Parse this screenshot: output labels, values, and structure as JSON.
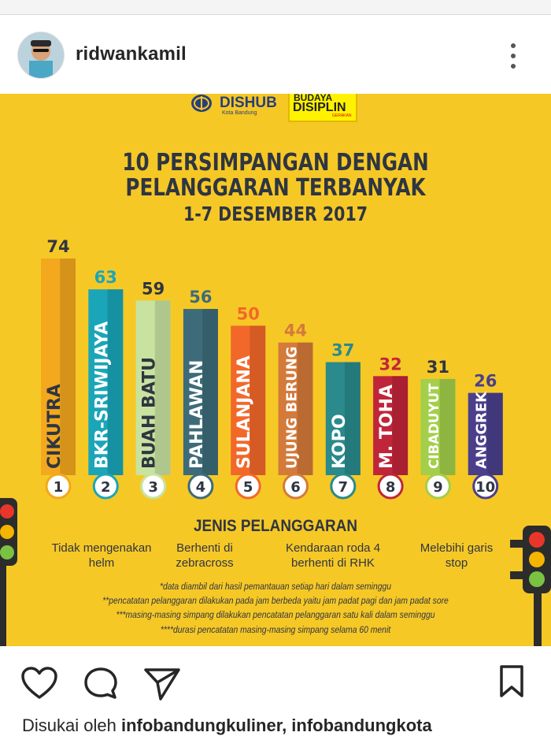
{
  "post": {
    "username": "ridwankamil",
    "liked_by_prefix": "Disukai oleh",
    "liked_by_names": "infobandungkuliner, infobandungkota"
  },
  "poster": {
    "logo_left": "DISHUB",
    "logo_left_sub": "Kota Bandung",
    "logo_right_top": "BUDAYA",
    "logo_right_main": "DISIPLIN",
    "logo_right_sub": "GERAKAN",
    "title_line1": "10 PERSIMPANGAN DENGAN",
    "title_line2": "PELANGGARAN TERBANYAK",
    "title_line3": "1-7 DESEMBER 2017",
    "jenis_title": "JENIS PELANGGARAN",
    "violations": [
      "Tidak mengenakan helm",
      "Berhenti di zebracross",
      "Kendaraan roda 4 berhenti di RHK",
      "Melebihi garis stop"
    ],
    "notes": [
      "*data diambil dari hasil pemantauan setiap hari dalam seminggu",
      "**pencatatan pelanggaran dilakukan pada jam berbeda yaitu jam padat pagi dan jam padat sore",
      "***masing-masing simpang dilakukan pencatatan pelanggaran satu kali dalam seminggu",
      "****durasi pencatatan masing-masing simpang selama 60 menit"
    ]
  },
  "chart_data": {
    "type": "bar",
    "title": "10 PERSIMPANGAN DENGAN PELANGGARAN TERBANYAK",
    "subtitle": "1-7 DESEMBER 2017",
    "categories": [
      "CIKUTRA",
      "BKR-SRIWIJAYA",
      "BUAH BATU",
      "PAHLAWAN",
      "SULANJANA",
      "UJUNG BERUNG",
      "KOPO",
      "M. TOHA",
      "CIBADUYUT",
      "ANGGREK"
    ],
    "ranks": [
      "1",
      "2",
      "3",
      "4",
      "5",
      "6",
      "7",
      "8",
      "9",
      "10"
    ],
    "values": [
      74,
      63,
      59,
      56,
      50,
      44,
      37,
      32,
      31,
      26
    ],
    "colors": [
      "#f3a81d",
      "#1aa6b8",
      "#c8e3a0",
      "#3d6b7a",
      "#f2682a",
      "#d47a3a",
      "#2a8a8c",
      "#c0253a",
      "#a3cf4a",
      "#4b3f8c"
    ],
    "text_colors": [
      "#2f3541",
      "#ffffff",
      "#2f3541",
      "#ffffff",
      "#ffffff",
      "#ffffff",
      "#ffffff",
      "#ffffff",
      "#ffffff",
      "#ffffff"
    ],
    "value_label_colors": [
      "#2f3541",
      "#1aa6b8",
      "#2f3541",
      "#3d6b7a",
      "#f2682a",
      "#d47a3a",
      "#2a8a8c",
      "#c0253a",
      "#2f3541",
      "#4b3f8c"
    ],
    "ylim": [
      0,
      80
    ]
  },
  "icons": {
    "like": "heart-icon",
    "comment": "comment-icon",
    "share": "paper-plane-icon",
    "save": "bookmark-icon",
    "more": "more-vertical-icon"
  }
}
